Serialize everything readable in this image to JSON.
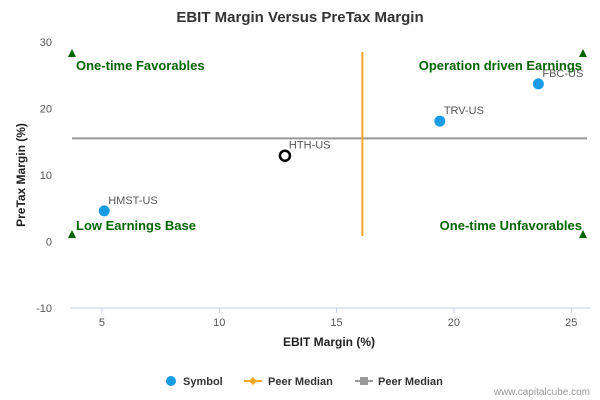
{
  "chart_data": {
    "type": "scatter",
    "title": "EBIT Margin Versus PreTax Margin",
    "xlabel": "EBIT Margin (%)",
    "ylabel": "PreTax Margin (%)",
    "xlim": [
      3.3,
      25.8
    ],
    "ylim": [
      -10,
      30
    ],
    "xticks": [
      5,
      10,
      15,
      20,
      25
    ],
    "yticks": [
      -10,
      0,
      10,
      20,
      30
    ],
    "grid": false,
    "series": [
      {
        "name": "Symbol",
        "color": "#1a9be6",
        "points": [
          {
            "label": "HMST-US",
            "x": 5.1,
            "y": 4.6
          },
          {
            "label": "TRV-US",
            "x": 19.4,
            "y": 18.1
          },
          {
            "label": "FBC-US",
            "x": 23.6,
            "y": 23.7
          }
        ]
      }
    ],
    "highlight": {
      "label": "HTH-US",
      "x": 12.8,
      "y": 12.9,
      "color": "#000000"
    },
    "peer_median_x": {
      "name": "Peer Median",
      "value": 16.1,
      "color": "#f5a623"
    },
    "peer_median_y": {
      "name": "Peer Median",
      "value": 15.5,
      "color": "#999999"
    },
    "quadrants": {
      "top_left": "One-time Favorables",
      "top_right": "Operation driven Earnings",
      "bottom_left": "Low Earnings Base",
      "bottom_right": "One-time Unfavorables",
      "color": "#006400"
    },
    "legend_position": "bottom-center"
  },
  "credit": "www.capitalcube.com"
}
